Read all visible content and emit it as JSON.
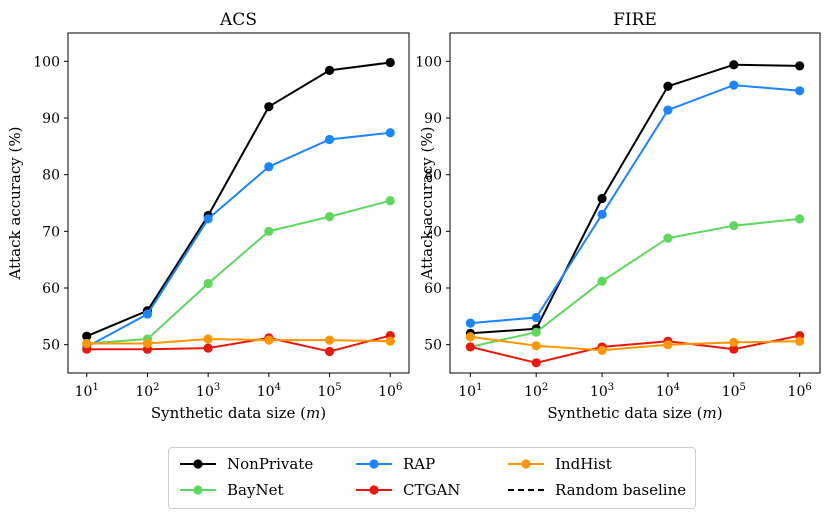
{
  "chart_data": [
    {
      "type": "line",
      "title": "ACS",
      "xlabel": "Synthetic data size (m)",
      "ylabel": "Attack accuracy (%)",
      "x": [
        "10^1",
        "10^2",
        "10^3",
        "10^4",
        "10^5",
        "10^6"
      ],
      "x_tick_base": [
        "10",
        "10",
        "10",
        "10",
        "10",
        "10"
      ],
      "x_tick_exp": [
        "1",
        "2",
        "3",
        "4",
        "5",
        "6"
      ],
      "yticks": [
        "50",
        "60",
        "70",
        "80",
        "90",
        "100"
      ],
      "ylim": [
        45,
        105
      ],
      "series": [
        {
          "name": "NonPrivate",
          "color": "#000000",
          "values": [
            51.5,
            56,
            72.8,
            92,
            98.4,
            99.8
          ]
        },
        {
          "name": "RAP",
          "color": "#1a85ff",
          "values": [
            49.6,
            55.4,
            72.2,
            81.4,
            86.2,
            87.4
          ]
        },
        {
          "name": "BayNet",
          "color": "#5dd85d",
          "values": [
            50.2,
            51,
            60.8,
            70,
            72.6,
            75.4
          ]
        },
        {
          "name": "CTGAN",
          "color": "#e8190b",
          "values": [
            49.2,
            49.2,
            49.4,
            51.2,
            48.8,
            51.6
          ]
        },
        {
          "name": "IndHist",
          "color": "#ff9500",
          "values": [
            50.2,
            50.2,
            51,
            50.8,
            50.8,
            50.6
          ]
        }
      ]
    },
    {
      "type": "line",
      "title": "FIRE",
      "xlabel": "Synthetic data size (m)",
      "ylabel": "Attack accuracy (%)",
      "x": [
        "10^1",
        "10^2",
        "10^3",
        "10^4",
        "10^5",
        "10^6"
      ],
      "x_tick_base": [
        "10",
        "10",
        "10",
        "10",
        "10",
        "10"
      ],
      "x_tick_exp": [
        "1",
        "2",
        "3",
        "4",
        "5",
        "6"
      ],
      "yticks": [
        "50",
        "60",
        "70",
        "80",
        "90",
        "100"
      ],
      "ylim": [
        45,
        105
      ],
      "series": [
        {
          "name": "NonPrivate",
          "color": "#000000",
          "values": [
            52,
            52.8,
            75.8,
            95.6,
            99.4,
            99.2
          ]
        },
        {
          "name": "RAP",
          "color": "#1a85ff",
          "values": [
            53.8,
            54.8,
            73,
            91.4,
            95.8,
            94.8
          ]
        },
        {
          "name": "BayNet",
          "color": "#5dd85d",
          "values": [
            49.6,
            52.2,
            61.2,
            68.8,
            71,
            72.2
          ]
        },
        {
          "name": "CTGAN",
          "color": "#e8190b",
          "values": [
            49.6,
            46.8,
            49.6,
            50.6,
            49.2,
            51.6
          ]
        },
        {
          "name": "IndHist",
          "color": "#ff9500",
          "values": [
            51.4,
            49.8,
            49,
            50,
            50.4,
            50.6
          ]
        }
      ]
    }
  ],
  "legend": {
    "items": [
      {
        "label": "NonPrivate",
        "color": "#000000",
        "style": "marker"
      },
      {
        "label": "RAP",
        "color": "#1a85ff",
        "style": "marker"
      },
      {
        "label": "IndHist",
        "color": "#ff9500",
        "style": "marker"
      },
      {
        "label": "BayNet",
        "color": "#5dd85d",
        "style": "marker"
      },
      {
        "label": "CTGAN",
        "color": "#e8190b",
        "style": "marker"
      },
      {
        "label": "Random baseline",
        "color": "#000000",
        "style": "dashed"
      }
    ]
  }
}
